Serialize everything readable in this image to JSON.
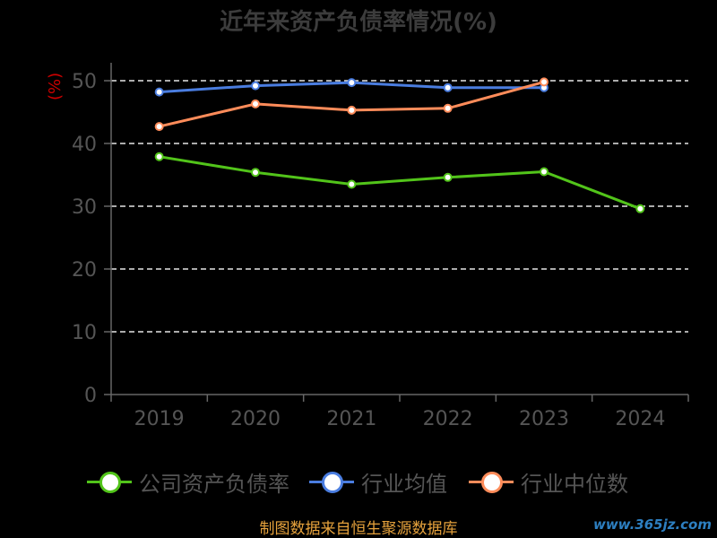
{
  "chart_data": {
    "type": "line",
    "title": "近年来资产负债率情况(%)",
    "ylabel": "(%)",
    "categories": [
      "2019",
      "2020",
      "2021",
      "2022",
      "2023",
      "2024"
    ],
    "ylim": [
      0,
      50
    ],
    "yticks": [
      "0",
      "10",
      "20",
      "30",
      "40",
      "50"
    ],
    "grid": true,
    "legend_position": "bottom",
    "series": [
      {
        "name": "公司资产负债率",
        "color": "#52c41a",
        "values": [
          37.9,
          35.4,
          33.5,
          34.6,
          35.5,
          29.6
        ]
      },
      {
        "name": "行业均值",
        "color": "#4a7de0",
        "values": [
          48.2,
          49.2,
          49.7,
          48.9,
          48.9,
          null
        ]
      },
      {
        "name": "行业中位数",
        "color": "#ff8c5a",
        "values": [
          42.7,
          46.3,
          45.3,
          45.6,
          49.8,
          null
        ]
      }
    ]
  },
  "footer": {
    "source": "制图数据来自恒生聚源数据库"
  },
  "watermark": {
    "text": "www.365jz.com"
  }
}
